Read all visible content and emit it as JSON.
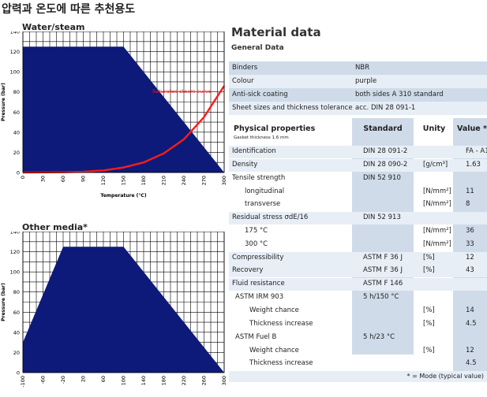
{
  "page_title": "압력과 온도에 따른 추천용도",
  "charts_titles": {
    "water": "Water/steam",
    "other": "Other media*"
  },
  "chart_data": [
    {
      "type": "area",
      "title": "Water/steam",
      "xlabel": "Temperature (°C)",
      "ylabel": "Pressure (bar)",
      "xlim": [
        0,
        300
      ],
      "ylim": [
        0,
        140
      ],
      "x_ticks": [
        "0",
        "30",
        "60",
        "90",
        "120",
        "150",
        "180",
        "210",
        "240",
        "270",
        "300"
      ],
      "y_ticks": [
        "0",
        "20",
        "40",
        "60",
        "80",
        "100",
        "120",
        "140"
      ],
      "grid": true,
      "series": [
        {
          "name": "",
          "points": [
            [
              0,
              125
            ],
            [
              150,
              125
            ],
            [
              300,
              0
            ],
            [
              0,
              0
            ]
          ]
        },
        {
          "name": "Saturated steam curve",
          "points": [
            [
              0,
              0
            ],
            [
              60,
              0.2
            ],
            [
              90,
              0.7
            ],
            [
              120,
              2
            ],
            [
              150,
              5
            ],
            [
              180,
              10
            ],
            [
              210,
              19
            ],
            [
              240,
              33
            ],
            [
              270,
              55
            ],
            [
              300,
              86
            ]
          ]
        }
      ],
      "colors": {
        "area": "#0d1a7a",
        "curve": "#ff1a1a"
      }
    },
    {
      "type": "area",
      "title": "Other media*",
      "xlabel": "",
      "ylabel": "Pressure (bar)",
      "xlim": [
        -100,
        300
      ],
      "ylim": [
        0,
        140
      ],
      "x_ticks": [
        "-100",
        "-60",
        "-20",
        "20",
        "60",
        "100",
        "140",
        "180",
        "220",
        "260",
        "300"
      ],
      "y_ticks": [
        "0",
        "20",
        "40",
        "60",
        "80",
        "100",
        "120",
        "140"
      ],
      "grid": true,
      "series": [
        {
          "name": "",
          "points": [
            [
              -100,
              0
            ],
            [
              -100,
              30
            ],
            [
              -20,
              125
            ],
            [
              100,
              125
            ],
            [
              300,
              0
            ]
          ]
        }
      ],
      "colors": {
        "area": "#0d1a7a"
      }
    }
  ],
  "material": {
    "title": "Material data",
    "general_title": "General Data",
    "general": [
      {
        "label": "Binders",
        "value": "NBR"
      },
      {
        "label": "Colour",
        "value": "purple"
      },
      {
        "label": "Anti-sick coating",
        "value": "both sides A 310 standard"
      },
      {
        "label": "Sheet sizes and thickness tolerance",
        "value": "acc. DIN 28 091-1"
      }
    ],
    "phys_header": {
      "title": "Physical properties",
      "sub": "Gasket thickness 1.6 mm",
      "standard": "Standard",
      "unity": "Unity",
      "value": "Value *"
    },
    "rows": [
      {
        "label": "Identification",
        "standard": "DIN 28 091-2",
        "unity": "",
        "value": "FA - A1 - O"
      },
      {
        "label": "Density",
        "standard": "DIN 28 090-2",
        "unity": "[g/cm³]",
        "value": "1.63"
      },
      {
        "label": "Tensile strength",
        "standard": "DIN 52 910",
        "unity": "",
        "value": ""
      },
      {
        "label": "longitudinal",
        "standard": "",
        "unity": "[N/mm²]",
        "value": "11"
      },
      {
        "label": "transverse",
        "standard": "",
        "unity": "[N/mm²]",
        "value": "8"
      },
      {
        "label": "Residual stress σdE/16",
        "standard": "DIN 52 913",
        "unity": "",
        "value": ""
      },
      {
        "label": "175 °C",
        "standard": "",
        "unity": "[N/mm²]",
        "value": "36"
      },
      {
        "label": "300 °C",
        "standard": "",
        "unity": "[N/mm²]",
        "value": "33"
      },
      {
        "label": "Compressibility",
        "standard": "ASTM F 36 J",
        "unity": "[%]",
        "value": "12"
      },
      {
        "label": "Recovery",
        "standard": "ASTM F 36 J",
        "unity": "[%]",
        "value": "43"
      },
      {
        "label": "Fluid resistance",
        "standard": "ASTM F 146",
        "unity": "",
        "value": ""
      },
      {
        "label": "ASTM IRM 903",
        "standard": "5 h/150 °C",
        "unity": "",
        "value": ""
      },
      {
        "label": "Weight chance",
        "standard": "",
        "unity": "[%]",
        "value": "14"
      },
      {
        "label": "Thickness increase",
        "standard": "",
        "unity": "[%]",
        "value": "4.5"
      },
      {
        "label": "ASTM Fuel B",
        "standard": "5 h/23 °C",
        "unity": "",
        "value": ""
      },
      {
        "label": "Weight chance",
        "standard": "",
        "unity": "[%]",
        "value": "12"
      },
      {
        "label": "Thickness increase",
        "standard": "",
        "unity": "",
        "value": "4.5"
      }
    ],
    "footnote": "* = Mode (typical value)"
  }
}
